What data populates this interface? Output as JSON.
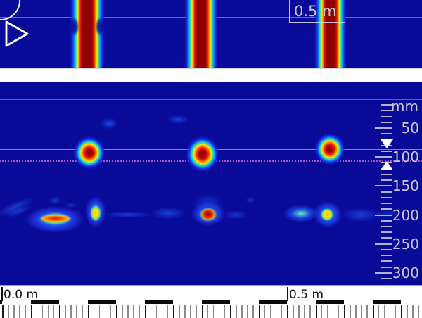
{
  "app": {
    "name": "concrete-radar-scan-view"
  },
  "top_panel": {
    "position_label": "0.5 m"
  },
  "bottom_panel": {
    "depth_scale": {
      "unit_label": "mm",
      "major_labels": [
        50,
        100,
        150,
        200,
        250,
        300
      ],
      "minor_step_mm": 10,
      "max_tick_mm": 310,
      "cursor_top_depth_mm": 86,
      "cursor_bottom_depth_mm": 106
    }
  },
  "ruler": {
    "origin_label": "0.0 m",
    "mid_label": "0.5 m",
    "tick_step_m": 0.01,
    "segment_m": 0.05
  },
  "scan_data": {
    "type": "heatmap",
    "views": [
      "plan-view-strip",
      "depth-cross-section"
    ],
    "detected_objects": [
      {
        "position_m": 0.15,
        "depth_mm": 92
      },
      {
        "position_m": 0.35,
        "depth_mm": 95
      },
      {
        "position_m": 0.575,
        "depth_mm": 87
      }
    ],
    "deep_reflection_band_depth_mm": 200,
    "x_range_m": [
      0.0,
      0.74
    ],
    "depth_range_mm": [
      0,
      310
    ]
  },
  "colors": {
    "background": "#0a0a99",
    "surface_line": "#a03fc4",
    "cursor_line": "#cf5ad2",
    "scale_text": "#c8c8da",
    "marker": "#ffffff",
    "hot_core": "#8f0000"
  }
}
